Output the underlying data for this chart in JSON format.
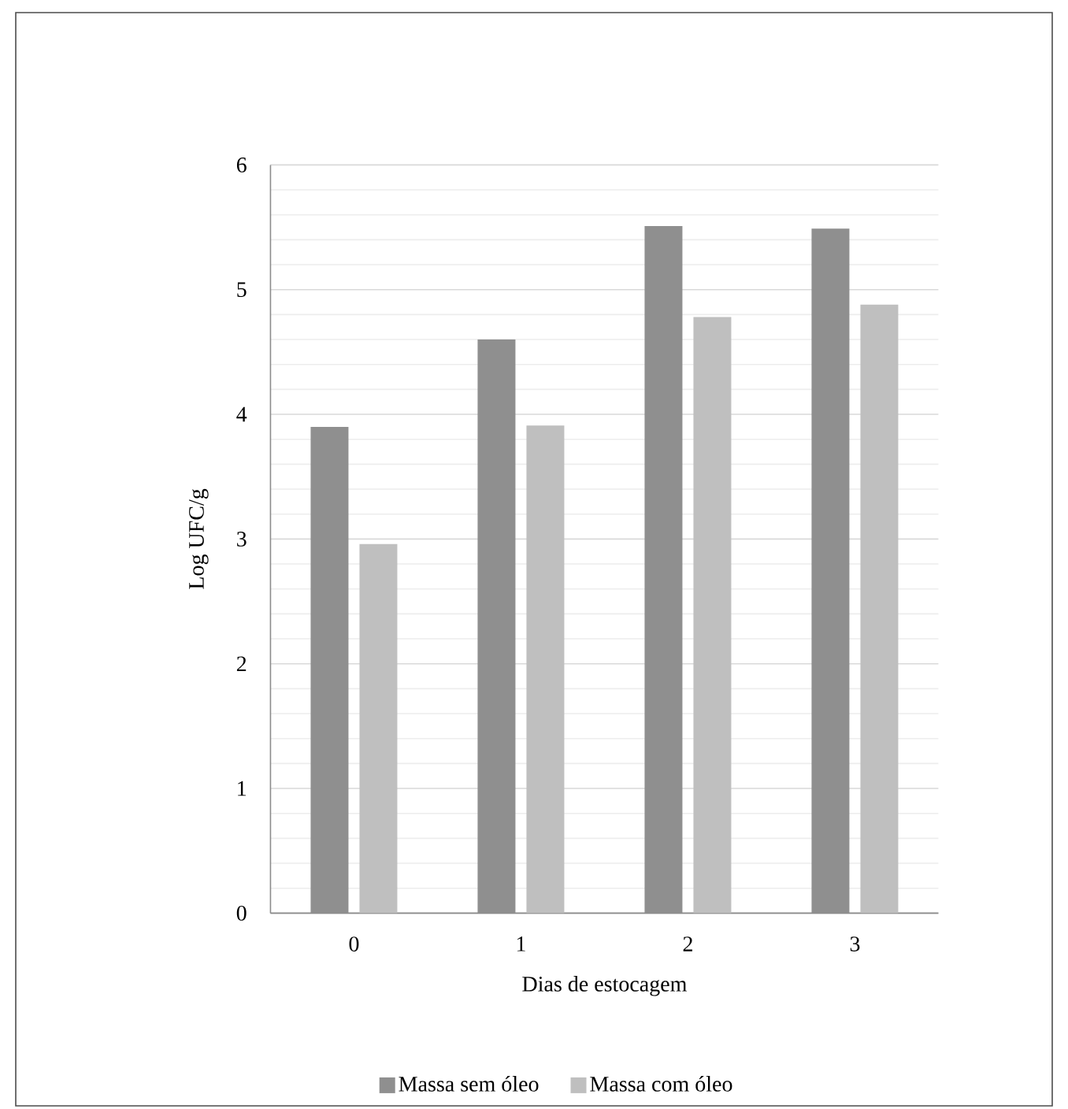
{
  "chart_data": {
    "type": "bar",
    "xlabel": "Dias de estocagem",
    "ylabel": "Log UFC/g",
    "categories": [
      "0",
      "1",
      "2",
      "3"
    ],
    "series": [
      {
        "name": "Massa sem óleo",
        "color": "#8f8f8f",
        "values": [
          3.9,
          4.6,
          5.51,
          5.49
        ]
      },
      {
        "name": "Massa com óleo",
        "color": "#bfbfbf",
        "values": [
          2.96,
          3.91,
          4.78,
          4.88
        ]
      }
    ],
    "ylim": [
      0,
      6
    ],
    "yticks": [
      0,
      1,
      2,
      3,
      4,
      5,
      6
    ],
    "grid": "y",
    "legend": "bottom"
  }
}
